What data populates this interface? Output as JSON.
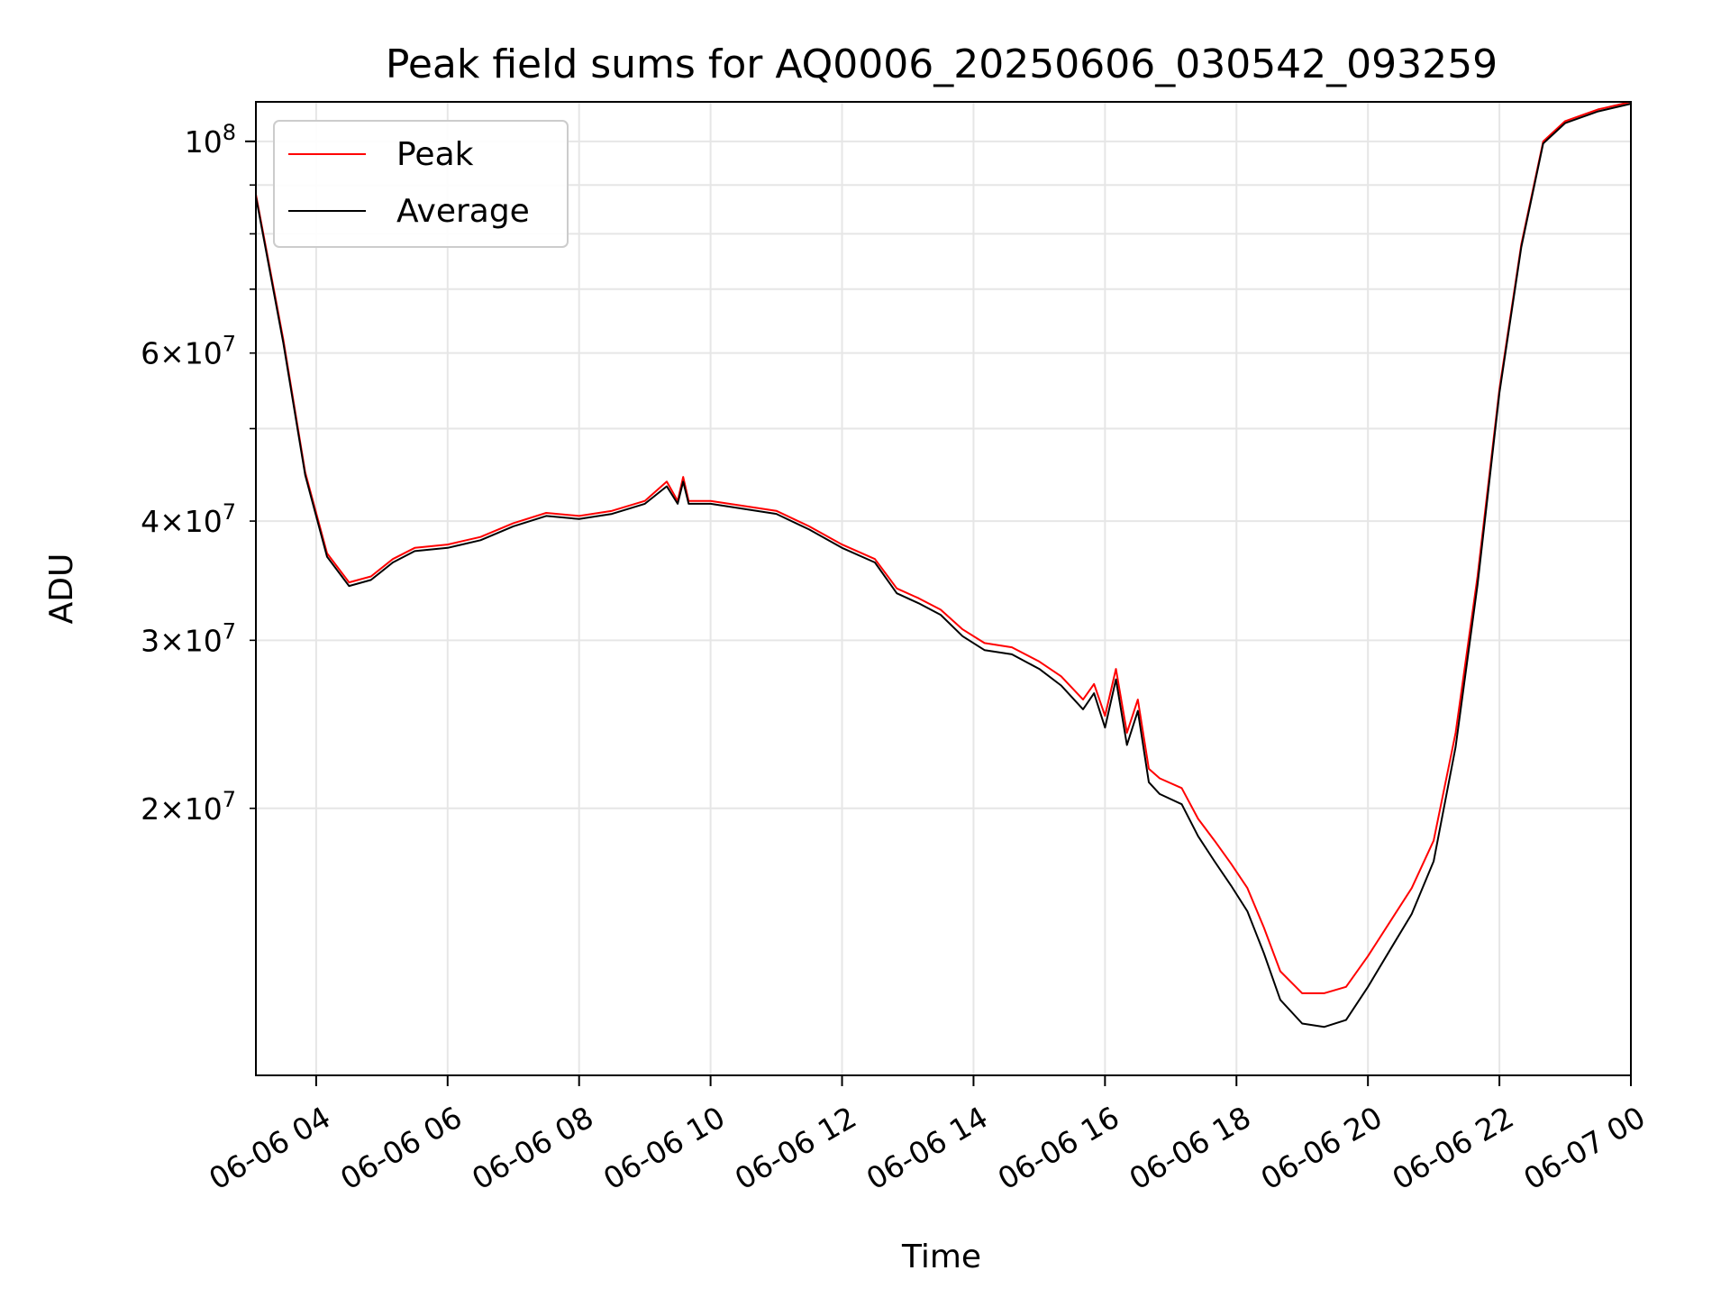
{
  "chart_data": {
    "type": "line",
    "title": "Peak field sums for AQ0006_20250606_030542_093259",
    "xlabel": "Time",
    "ylabel": "ADU",
    "yscale": "log",
    "grid": true,
    "legend_position": "top-left",
    "xlim": [
      "2025-06-06 03:05",
      "2025-06-07 00:00"
    ],
    "ylim": [
      10500000,
      110000000
    ],
    "x_ticks": [
      {
        "value": "2025-06-06 04:00",
        "label": "06-06 04"
      },
      {
        "value": "2025-06-06 06:00",
        "label": "06-06 06"
      },
      {
        "value": "2025-06-06 08:00",
        "label": "06-06 08"
      },
      {
        "value": "2025-06-06 10:00",
        "label": "06-06 10"
      },
      {
        "value": "2025-06-06 12:00",
        "label": "06-06 12"
      },
      {
        "value": "2025-06-06 14:00",
        "label": "06-06 14"
      },
      {
        "value": "2025-06-06 16:00",
        "label": "06-06 16"
      },
      {
        "value": "2025-06-06 18:00",
        "label": "06-06 18"
      },
      {
        "value": "2025-06-06 20:00",
        "label": "06-06 20"
      },
      {
        "value": "2025-06-06 22:00",
        "label": "06-06 22"
      },
      {
        "value": "2025-06-07 00:00",
        "label": "06-07 00"
      }
    ],
    "y_ticks_major": [
      {
        "value": 100000000,
        "base": "10",
        "exp": "8"
      }
    ],
    "y_ticks_minor": [
      {
        "value": 20000000,
        "mant": "2",
        "exp": "7"
      },
      {
        "value": 30000000,
        "mant": "3",
        "exp": "7"
      },
      {
        "value": 40000000,
        "mant": "4",
        "exp": "7"
      },
      {
        "value": 60000000,
        "mant": "6",
        "exp": "7"
      }
    ],
    "y_minor_unlabeled": [
      50000000,
      70000000,
      80000000,
      90000000
    ],
    "series": [
      {
        "name": "Peak",
        "color": "#ff0000",
        "x": [
          "2025-06-06 03:05",
          "2025-06-06 03:30",
          "2025-06-06 03:50",
          "2025-06-06 04:10",
          "2025-06-06 04:30",
          "2025-06-06 04:50",
          "2025-06-06 05:10",
          "2025-06-06 05:30",
          "2025-06-06 06:00",
          "2025-06-06 06:30",
          "2025-06-06 07:00",
          "2025-06-06 07:30",
          "2025-06-06 08:00",
          "2025-06-06 08:30",
          "2025-06-06 09:00",
          "2025-06-06 09:20",
          "2025-06-06 09:30",
          "2025-06-06 09:35",
          "2025-06-06 09:40",
          "2025-06-06 10:00",
          "2025-06-06 10:30",
          "2025-06-06 11:00",
          "2025-06-06 11:30",
          "2025-06-06 12:00",
          "2025-06-06 12:30",
          "2025-06-06 12:50",
          "2025-06-06 13:10",
          "2025-06-06 13:30",
          "2025-06-06 13:50",
          "2025-06-06 14:10",
          "2025-06-06 14:35",
          "2025-06-06 15:00",
          "2025-06-06 15:20",
          "2025-06-06 15:40",
          "2025-06-06 15:50",
          "2025-06-06 16:00",
          "2025-06-06 16:10",
          "2025-06-06 16:20",
          "2025-06-06 16:30",
          "2025-06-06 16:40",
          "2025-06-06 16:50",
          "2025-06-06 17:10",
          "2025-06-06 17:25",
          "2025-06-06 17:40",
          "2025-06-06 17:55",
          "2025-06-06 18:10",
          "2025-06-06 18:25",
          "2025-06-06 18:40",
          "2025-06-06 19:00",
          "2025-06-06 19:20",
          "2025-06-06 19:40",
          "2025-06-06 20:00",
          "2025-06-06 20:20",
          "2025-06-06 20:40",
          "2025-06-06 21:00",
          "2025-06-06 21:20",
          "2025-06-06 21:40",
          "2025-06-06 22:00",
          "2025-06-06 22:20",
          "2025-06-06 22:40",
          "2025-06-06 23:00",
          "2025-06-06 23:30",
          "2025-06-07 00:00"
        ],
        "values": [
          88000000,
          62000000,
          45000000,
          37000000,
          34500000,
          35000000,
          36500000,
          37500000,
          37800000,
          38500000,
          39800000,
          40800000,
          40500000,
          41000000,
          42000000,
          44000000,
          42000000,
          44500000,
          42000000,
          42000000,
          41500000,
          41000000,
          39500000,
          37800000,
          36500000,
          34000000,
          33200000,
          32300000,
          30800000,
          29800000,
          29500000,
          28500000,
          27500000,
          26000000,
          27000000,
          25000000,
          28000000,
          24000000,
          26000000,
          22000000,
          21500000,
          21000000,
          19500000,
          18500000,
          17500000,
          16500000,
          15000000,
          13500000,
          12800000,
          12800000,
          13000000,
          14000000,
          15200000,
          16500000,
          18500000,
          24000000,
          35000000,
          55000000,
          78000000,
          100000000,
          105000000,
          108000000,
          110000000
        ]
      },
      {
        "name": "Average",
        "color": "#000000",
        "x": [
          "2025-06-06 03:05",
          "2025-06-06 03:30",
          "2025-06-06 03:50",
          "2025-06-06 04:10",
          "2025-06-06 04:30",
          "2025-06-06 04:50",
          "2025-06-06 05:10",
          "2025-06-06 05:30",
          "2025-06-06 06:00",
          "2025-06-06 06:30",
          "2025-06-06 07:00",
          "2025-06-06 07:30",
          "2025-06-06 08:00",
          "2025-06-06 08:30",
          "2025-06-06 09:00",
          "2025-06-06 09:20",
          "2025-06-06 09:30",
          "2025-06-06 09:35",
          "2025-06-06 09:40",
          "2025-06-06 10:00",
          "2025-06-06 10:30",
          "2025-06-06 11:00",
          "2025-06-06 11:30",
          "2025-06-06 12:00",
          "2025-06-06 12:30",
          "2025-06-06 12:50",
          "2025-06-06 13:10",
          "2025-06-06 13:30",
          "2025-06-06 13:50",
          "2025-06-06 14:10",
          "2025-06-06 14:35",
          "2025-06-06 15:00",
          "2025-06-06 15:20",
          "2025-06-06 15:40",
          "2025-06-06 15:50",
          "2025-06-06 16:00",
          "2025-06-06 16:10",
          "2025-06-06 16:20",
          "2025-06-06 16:30",
          "2025-06-06 16:40",
          "2025-06-06 16:50",
          "2025-06-06 17:10",
          "2025-06-06 17:25",
          "2025-06-06 17:40",
          "2025-06-06 17:55",
          "2025-06-06 18:10",
          "2025-06-06 18:25",
          "2025-06-06 18:40",
          "2025-06-06 19:00",
          "2025-06-06 19:20",
          "2025-06-06 19:40",
          "2025-06-06 20:00",
          "2025-06-06 20:20",
          "2025-06-06 20:40",
          "2025-06-06 21:00",
          "2025-06-06 21:20",
          "2025-06-06 21:40",
          "2025-06-06 22:00",
          "2025-06-06 22:20",
          "2025-06-06 22:40",
          "2025-06-06 23:00",
          "2025-06-06 23:30",
          "2025-06-07 00:00"
        ],
        "values": [
          87500000,
          61500000,
          44700000,
          36700000,
          34200000,
          34700000,
          36200000,
          37200000,
          37500000,
          38200000,
          39500000,
          40500000,
          40200000,
          40700000,
          41700000,
          43500000,
          41700000,
          44000000,
          41700000,
          41700000,
          41200000,
          40700000,
          39200000,
          37500000,
          36200000,
          33600000,
          32800000,
          31900000,
          30300000,
          29300000,
          29000000,
          28000000,
          26900000,
          25400000,
          26400000,
          24300000,
          27300000,
          23300000,
          25300000,
          21300000,
          20700000,
          20200000,
          18700000,
          17600000,
          16600000,
          15600000,
          14100000,
          12600000,
          11900000,
          11800000,
          12000000,
          13000000,
          14200000,
          15500000,
          17600000,
          23200000,
          34300000,
          54500000,
          77500000,
          99500000,
          104500000,
          107500000,
          109500000
        ]
      }
    ]
  }
}
